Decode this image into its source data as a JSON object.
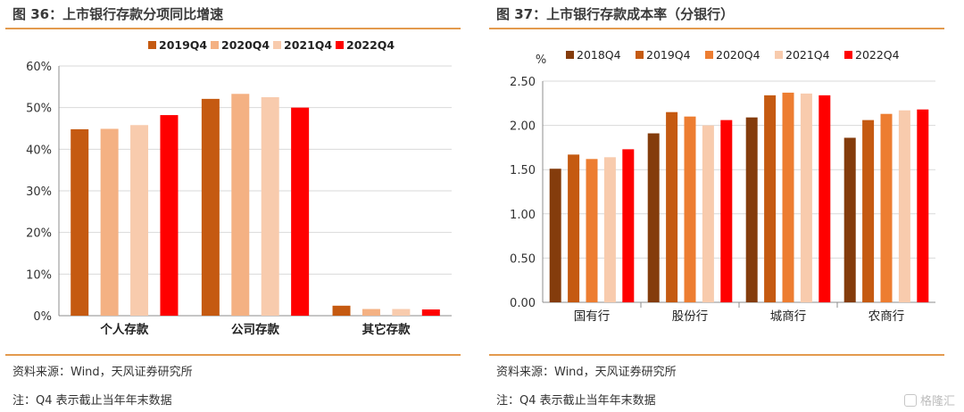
{
  "left": {
    "title": "图 36：上市银行存款分项同比增速",
    "source": "资料来源：Wind，天风证券研究所",
    "note": "注：Q4 表示截止当年年末数据"
  },
  "right": {
    "title": "图 37：上市银行存款成本率（分银行）",
    "source": "资料来源：Wind，天风证券研究所",
    "note": "注：Q4 表示截止当年年末数据"
  },
  "watermark": "格隆汇",
  "chart_data": [
    {
      "type": "bar",
      "categories": [
        "个人存款",
        "公司存款",
        "其它存款"
      ],
      "series": [
        {
          "name": "2019Q4",
          "color": "#c55a11",
          "values": [
            44.8,
            52.1,
            2.4
          ]
        },
        {
          "name": "2020Q4",
          "color": "#f4b183",
          "values": [
            44.9,
            53.3,
            1.6
          ]
        },
        {
          "name": "2021Q4",
          "color": "#f8cbad",
          "values": [
            45.8,
            52.5,
            1.6
          ]
        },
        {
          "name": "2022Q4",
          "color": "#ff0000",
          "values": [
            48.2,
            50.0,
            1.5
          ]
        }
      ],
      "ylim": [
        0,
        60
      ],
      "yticks": [
        0,
        10,
        20,
        30,
        40,
        50,
        60
      ],
      "ytick_labels": [
        "0%",
        "10%",
        "20%",
        "30%",
        "40%",
        "50%",
        "60%"
      ],
      "ylabel": "",
      "legend_position": "top"
    },
    {
      "type": "bar",
      "categories": [
        "国有行",
        "股份行",
        "城商行",
        "农商行"
      ],
      "series": [
        {
          "name": "2018Q4",
          "color": "#843c0c",
          "values": [
            1.51,
            1.91,
            2.09,
            1.86
          ]
        },
        {
          "name": "2019Q4",
          "color": "#c55a11",
          "values": [
            1.67,
            2.15,
            2.34,
            2.06
          ]
        },
        {
          "name": "2020Q4",
          "color": "#ed7d31",
          "values": [
            1.62,
            2.1,
            2.37,
            2.13
          ]
        },
        {
          "name": "2021Q4",
          "color": "#f8cbad",
          "values": [
            1.64,
            2.0,
            2.36,
            2.17
          ]
        },
        {
          "name": "2022Q4",
          "color": "#ff0000",
          "values": [
            1.73,
            2.06,
            2.34,
            2.18
          ]
        }
      ],
      "ylim": [
        0,
        2.5
      ],
      "yticks": [
        0,
        0.5,
        1.0,
        1.5,
        2.0,
        2.5
      ],
      "ytick_labels": [
        "0.00",
        "0.50",
        "1.00",
        "1.50",
        "2.00",
        "2.50"
      ],
      "ylabel": "%",
      "legend_position": "top"
    }
  ]
}
